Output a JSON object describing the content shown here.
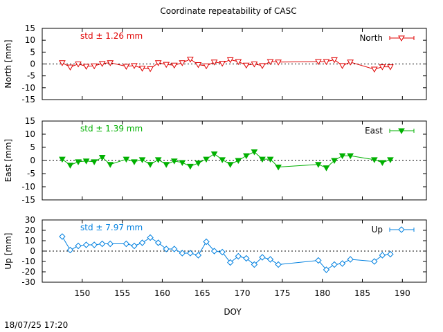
{
  "title": "Coordinate repeatability of CASC",
  "xlabel": "DOY",
  "timestamp": "18/07/25 17:20",
  "x_ticks": [
    "150",
    "155",
    "160",
    "165",
    "170",
    "175",
    "180",
    "185",
    "190"
  ],
  "chart_data": [
    {
      "type": "line",
      "name": "North",
      "ylabel": "North [mm]",
      "color": "#e00000",
      "marker": "triangle-down-open",
      "std_label": "std ± 1.26 mm",
      "xlim": [
        145,
        193
      ],
      "ylim": [
        -15,
        15
      ],
      "y_ticks": [
        "15",
        "10",
        "5",
        "0",
        "-5",
        "-10",
        "-15"
      ],
      "zero_line": true,
      "legend": "top-right",
      "x": [
        147.5,
        148.5,
        149.5,
        150.5,
        151.5,
        152.5,
        153.5,
        155.5,
        156.5,
        157.5,
        158.5,
        159.5,
        160.5,
        161.5,
        162.5,
        163.5,
        164.5,
        165.5,
        166.5,
        167.5,
        168.5,
        169.5,
        170.5,
        171.5,
        172.5,
        173.5,
        174.5,
        179.5,
        180.5,
        181.5,
        182.5,
        183.5,
        186.5,
        187.5,
        188.5
      ],
      "y": [
        0.5,
        -1.3,
        0.0,
        -1.0,
        -0.8,
        0.2,
        0.5,
        -1.0,
        -0.7,
        -1.8,
        -2.0,
        0.5,
        -0.2,
        -0.5,
        0.5,
        2.0,
        -0.3,
        -0.8,
        0.8,
        0.3,
        1.8,
        1.0,
        -0.5,
        0.0,
        -0.7,
        1.0,
        0.8,
        1.0,
        1.0,
        1.8,
        -0.7,
        0.8,
        -2.2,
        -1.2,
        -1.2
      ]
    },
    {
      "type": "line",
      "name": "East",
      "ylabel": "East [mm]",
      "color": "#00b000",
      "marker": "triangle-down-filled",
      "std_label": "std ± 1.39 mm",
      "xlim": [
        145,
        193
      ],
      "ylim": [
        -15,
        15
      ],
      "y_ticks": [
        "15",
        "10",
        "5",
        "0",
        "-5",
        "-10",
        "-15"
      ],
      "zero_line": true,
      "legend": "top-right",
      "x": [
        147.5,
        148.5,
        149.5,
        150.5,
        151.5,
        152.5,
        153.5,
        155.5,
        156.5,
        157.5,
        158.5,
        159.5,
        160.5,
        161.5,
        162.5,
        163.5,
        164.5,
        165.5,
        166.5,
        167.5,
        168.5,
        169.5,
        170.5,
        171.5,
        172.5,
        173.5,
        174.5,
        179.5,
        180.5,
        181.5,
        182.5,
        183.5,
        186.5,
        187.5,
        188.5
      ],
      "y": [
        0.5,
        -1.8,
        -0.5,
        -0.2,
        -0.5,
        1.2,
        -1.5,
        0.5,
        -0.5,
        0.3,
        -1.5,
        0.3,
        -1.5,
        -0.2,
        -0.8,
        -2.2,
        -1.0,
        0.5,
        2.5,
        0.3,
        -1.5,
        0.0,
        1.8,
        3.3,
        0.5,
        0.5,
        -2.5,
        -1.5,
        -2.8,
        0.0,
        1.8,
        1.8,
        0.3,
        -0.8,
        0.3
      ]
    },
    {
      "type": "line",
      "name": "Up",
      "ylabel": "Up [mm]",
      "color": "#0080e0",
      "marker": "diamond-open",
      "std_label": "std ± 7.97 mm",
      "xlim": [
        145,
        193
      ],
      "ylim": [
        -30,
        30
      ],
      "y_ticks": [
        "30",
        "20",
        "10",
        "0",
        "-10",
        "-20",
        "-30"
      ],
      "zero_line": true,
      "legend": "top-right",
      "x": [
        147.5,
        148.5,
        149.5,
        150.5,
        151.5,
        152.5,
        153.5,
        155.5,
        156.5,
        157.5,
        158.5,
        159.5,
        160.5,
        161.5,
        162.5,
        163.5,
        164.5,
        165.5,
        166.5,
        167.5,
        168.5,
        169.5,
        170.5,
        171.5,
        172.5,
        173.5,
        174.5,
        179.5,
        180.5,
        181.5,
        182.5,
        183.5,
        186.5,
        187.5,
        188.5
      ],
      "y": [
        14,
        1,
        5,
        6,
        6,
        7,
        7,
        7,
        5,
        8,
        13,
        8,
        2,
        2,
        -2,
        -2,
        -4,
        9,
        0,
        -1,
        -11,
        -5,
        -7,
        -13,
        -6,
        -8,
        -13,
        -9,
        -18,
        -13,
        -12,
        -8,
        -10,
        -4,
        -3
      ]
    }
  ]
}
